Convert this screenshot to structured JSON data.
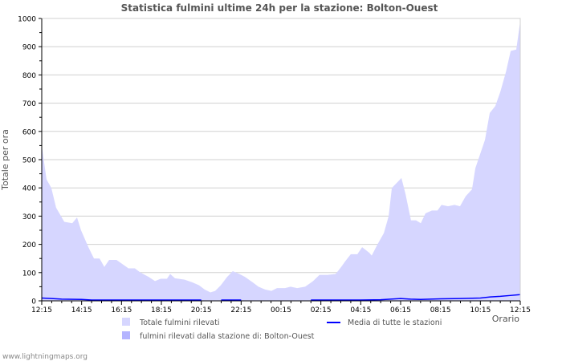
{
  "chart_data": {
    "type": "area",
    "title": "Statistica fulmini ultime 24h per la stazione: Bolton-Ouest",
    "xlabel": "Orario",
    "ylabel": "Totale per ora",
    "ylim": [
      0,
      1000
    ],
    "yticks": [
      0,
      100,
      200,
      300,
      400,
      500,
      600,
      700,
      800,
      900,
      1000
    ],
    "xlim_hours": [
      0,
      24
    ],
    "xtick_labels": [
      "12:15",
      "14:15",
      "16:15",
      "18:15",
      "20:15",
      "22:15",
      "00:15",
      "02:15",
      "04:15",
      "06:15",
      "08:15",
      "10:15",
      "12:15"
    ],
    "grid": true,
    "legend_position": "bottom",
    "series": [
      {
        "name": "Totale fulmini rilevati",
        "kind": "area",
        "color": "#d6d6ff",
        "points": [
          [
            0,
            550
          ],
          [
            0.24,
            430
          ],
          [
            0.48,
            400
          ],
          [
            0.72,
            330
          ],
          [
            1.13,
            280
          ],
          [
            1.53,
            275
          ],
          [
            1.77,
            295
          ],
          [
            1.97,
            250
          ],
          [
            2.34,
            190
          ],
          [
            2.62,
            150
          ],
          [
            2.9,
            150
          ],
          [
            3.14,
            120
          ],
          [
            3.38,
            145
          ],
          [
            3.75,
            145
          ],
          [
            3.95,
            135
          ],
          [
            4.35,
            115
          ],
          [
            4.67,
            115
          ],
          [
            4.95,
            100
          ],
          [
            5.36,
            85
          ],
          [
            5.68,
            70
          ],
          [
            5.96,
            78
          ],
          [
            6.28,
            78
          ],
          [
            6.44,
            95
          ],
          [
            6.68,
            80
          ],
          [
            7.17,
            75
          ],
          [
            7.57,
            65
          ],
          [
            7.89,
            55
          ],
          [
            8.17,
            40
          ],
          [
            8.46,
            30
          ],
          [
            8.7,
            35
          ],
          [
            8.98,
            55
          ],
          [
            9.3,
            85
          ],
          [
            9.58,
            105
          ],
          [
            9.91,
            95
          ],
          [
            10.19,
            85
          ],
          [
            10.59,
            65
          ],
          [
            10.87,
            50
          ],
          [
            11.2,
            40
          ],
          [
            11.52,
            35
          ],
          [
            11.8,
            45
          ],
          [
            12.2,
            45
          ],
          [
            12.48,
            50
          ],
          [
            12.81,
            45
          ],
          [
            13.21,
            50
          ],
          [
            13.61,
            70
          ],
          [
            13.93,
            92
          ],
          [
            14.34,
            92
          ],
          [
            14.74,
            95
          ],
          [
            15.02,
            120
          ],
          [
            15.22,
            140
          ],
          [
            15.5,
            165
          ],
          [
            15.83,
            165
          ],
          [
            16.07,
            190
          ],
          [
            16.43,
            170
          ],
          [
            16.55,
            160
          ],
          [
            16.84,
            200
          ],
          [
            17.16,
            240
          ],
          [
            17.4,
            300
          ],
          [
            17.56,
            400
          ],
          [
            17.84,
            420
          ],
          [
            18.04,
            435
          ],
          [
            18.24,
            380
          ],
          [
            18.52,
            285
          ],
          [
            18.77,
            285
          ],
          [
            19.01,
            275
          ],
          [
            19.25,
            310
          ],
          [
            19.57,
            320
          ],
          [
            19.85,
            320
          ],
          [
            20.05,
            340
          ],
          [
            20.38,
            335
          ],
          [
            20.7,
            340
          ],
          [
            20.98,
            335
          ],
          [
            21.26,
            370
          ],
          [
            21.58,
            395
          ],
          [
            21.75,
            470
          ],
          [
            21.99,
            520
          ],
          [
            22.23,
            570
          ],
          [
            22.47,
            665
          ],
          [
            22.75,
            690
          ],
          [
            23,
            740
          ],
          [
            23.28,
            810
          ],
          [
            23.52,
            885
          ],
          [
            23.8,
            890
          ],
          [
            24,
            990
          ]
        ]
      },
      {
        "name": "fulmini rilevati dalla stazione di: Bolton-Ouest",
        "kind": "area",
        "color": "#b4b4ff",
        "points": []
      },
      {
        "name": "Media di tutte le stazioni",
        "kind": "line",
        "color": "#0000ff",
        "points": [
          [
            0,
            10
          ],
          [
            0.5,
            8
          ],
          [
            1,
            6
          ],
          [
            2,
            5
          ],
          [
            2.5,
            3
          ],
          [
            4,
            3
          ],
          [
            6,
            3
          ],
          [
            7,
            3
          ],
          [
            8,
            3
          ],
          [
            null,
            null
          ],
          [
            9,
            3
          ],
          [
            10,
            3
          ],
          [
            null,
            null
          ],
          [
            13.5,
            3
          ],
          [
            15,
            3
          ],
          [
            16,
            3
          ],
          [
            17,
            4
          ],
          [
            17.5,
            6
          ],
          [
            18,
            8
          ],
          [
            18.5,
            6
          ],
          [
            19,
            5
          ],
          [
            20,
            7
          ],
          [
            21,
            8
          ],
          [
            22,
            10
          ],
          [
            22.5,
            14
          ],
          [
            23,
            16
          ],
          [
            23.5,
            19
          ],
          [
            24,
            22
          ]
        ]
      }
    ]
  },
  "footer": {
    "credit": "www.lightningmaps.org"
  }
}
